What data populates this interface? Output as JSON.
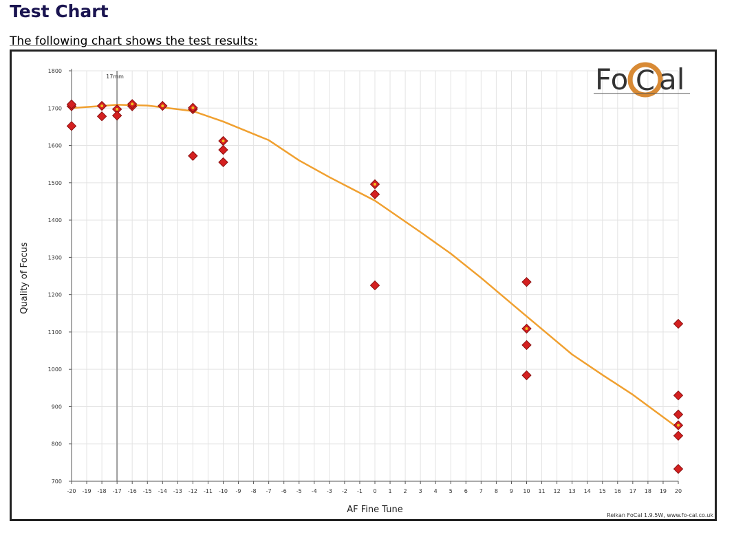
{
  "page": {
    "heading": "Test Chart",
    "intro": "The following chart shows the test results:"
  },
  "logo": {
    "prefix": "Fo",
    "letter": "C",
    "suffix": "al"
  },
  "colors": {
    "curve": "#f0a030",
    "marker": "#d42020",
    "marker_border": "#8a1010",
    "marker_center": "#f0c020",
    "ring": "#d88a35",
    "ref_line": "#999999",
    "grid": "#e3e3e3"
  },
  "chart_data": {
    "type": "scatter",
    "xlabel": "AF Fine Tune",
    "ylabel": "Quality of Focus",
    "xlim": [
      -20,
      20
    ],
    "ylim": [
      700,
      1800
    ],
    "xticks": [
      -20,
      -19,
      -18,
      -17,
      -16,
      -15,
      -14,
      -13,
      -12,
      -11,
      -10,
      -9,
      -8,
      -7,
      -6,
      -5,
      -4,
      -3,
      -2,
      -1,
      0,
      1,
      2,
      3,
      4,
      5,
      6,
      7,
      8,
      9,
      10,
      11,
      12,
      13,
      14,
      15,
      16,
      17,
      18,
      19,
      20
    ],
    "yticks": [
      700,
      800,
      900,
      1000,
      1100,
      1200,
      1300,
      1400,
      1500,
      1600,
      1700,
      1800
    ],
    "grid": true,
    "reference_line": {
      "x": -17,
      "label": "17mm"
    },
    "points": [
      {
        "x": -20,
        "y": 1705,
        "highlight": true
      },
      {
        "x": -20,
        "y": 1710,
        "highlight": false
      },
      {
        "x": -20,
        "y": 1652,
        "highlight": false
      },
      {
        "x": -18,
        "y": 1706,
        "highlight": true
      },
      {
        "x": -18,
        "y": 1678,
        "highlight": false
      },
      {
        "x": -17,
        "y": 1697,
        "highlight": true
      },
      {
        "x": -17,
        "y": 1680,
        "highlight": false
      },
      {
        "x": -16,
        "y": 1705,
        "highlight": false
      },
      {
        "x": -16,
        "y": 1711,
        "highlight": true
      },
      {
        "x": -14,
        "y": 1706,
        "highlight": true
      },
      {
        "x": -12,
        "y": 1697,
        "highlight": false
      },
      {
        "x": -12,
        "y": 1701,
        "highlight": true
      },
      {
        "x": -12,
        "y": 1572,
        "highlight": false
      },
      {
        "x": -10,
        "y": 1612,
        "highlight": true
      },
      {
        "x": -10,
        "y": 1588,
        "highlight": false
      },
      {
        "x": -10,
        "y": 1555,
        "highlight": false
      },
      {
        "x": 0,
        "y": 1496,
        "highlight": true
      },
      {
        "x": 0,
        "y": 1469,
        "highlight": false
      },
      {
        "x": 0,
        "y": 1225,
        "highlight": false
      },
      {
        "x": 10,
        "y": 1234,
        "highlight": false
      },
      {
        "x": 10,
        "y": 1109,
        "highlight": true
      },
      {
        "x": 10,
        "y": 1065,
        "highlight": false
      },
      {
        "x": 10,
        "y": 984,
        "highlight": false
      },
      {
        "x": 20,
        "y": 1122,
        "highlight": false
      },
      {
        "x": 20,
        "y": 930,
        "highlight": false
      },
      {
        "x": 20,
        "y": 879,
        "highlight": false
      },
      {
        "x": 20,
        "y": 850,
        "highlight": true
      },
      {
        "x": 20,
        "y": 822,
        "highlight": false
      },
      {
        "x": 20,
        "y": 733,
        "highlight": false
      }
    ],
    "curve": [
      {
        "x": -20,
        "y": 1700
      },
      {
        "x": -17,
        "y": 1709
      },
      {
        "x": -15,
        "y": 1707
      },
      {
        "x": -12,
        "y": 1692
      },
      {
        "x": -10,
        "y": 1664
      },
      {
        "x": -7,
        "y": 1614
      },
      {
        "x": -5,
        "y": 1560
      },
      {
        "x": -3,
        "y": 1515
      },
      {
        "x": 0,
        "y": 1452
      },
      {
        "x": 3,
        "y": 1368
      },
      {
        "x": 5,
        "y": 1310
      },
      {
        "x": 7,
        "y": 1245
      },
      {
        "x": 10,
        "y": 1142
      },
      {
        "x": 13,
        "y": 1040
      },
      {
        "x": 15,
        "y": 985
      },
      {
        "x": 17,
        "y": 932
      },
      {
        "x": 20,
        "y": 842
      }
    ]
  },
  "footer": {
    "credit": "Reikan FoCal 1.9.5W, www.fo-cal.co.uk"
  }
}
